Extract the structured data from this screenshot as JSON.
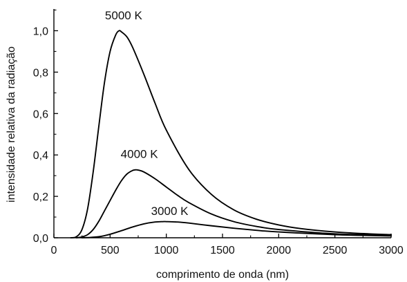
{
  "chart_data": {
    "type": "line",
    "xlabel": "comprimento de onda (nm)",
    "ylabel": "intensidade relativa da radiação",
    "xlim": [
      0,
      3000
    ],
    "ylim": [
      0,
      1.1
    ],
    "x_ticks": [
      0,
      500,
      1000,
      1500,
      2000,
      2500,
      3000
    ],
    "x_tick_labels": [
      "0",
      "500",
      "1000",
      "1500",
      "2000",
      "2500",
      "3000"
    ],
    "y_ticks": [
      0,
      0.2,
      0.4,
      0.6,
      0.8,
      1.0
    ],
    "y_tick_labels": [
      "0,0",
      "0,2",
      "0,4",
      "0,6",
      "0,8",
      "1,0"
    ],
    "grid": false,
    "line_color": "#000000",
    "series": [
      {
        "name": "5000 K",
        "x": [
          150,
          200,
          250,
          300,
          350,
          400,
          450,
          500,
          550,
          580,
          600,
          650,
          700,
          800,
          900,
          1000,
          1200,
          1400,
          1600,
          1800,
          2000,
          2200,
          2500,
          2800,
          3000
        ],
        "y": [
          0.0,
          0.005,
          0.04,
          0.14,
          0.32,
          0.54,
          0.75,
          0.9,
          0.98,
          1.0,
          0.995,
          0.97,
          0.92,
          0.79,
          0.65,
          0.52,
          0.33,
          0.21,
          0.135,
          0.09,
          0.062,
          0.044,
          0.028,
          0.019,
          0.015
        ]
      },
      {
        "name": "4000 K",
        "x": [
          200,
          250,
          300,
          350,
          400,
          450,
          500,
          550,
          600,
          650,
          700,
          725,
          750,
          800,
          900,
          1000,
          1100,
          1200,
          1400,
          1600,
          1800,
          2000,
          2500,
          3000
        ],
        "y": [
          0.0,
          0.004,
          0.015,
          0.04,
          0.08,
          0.13,
          0.18,
          0.23,
          0.275,
          0.308,
          0.325,
          0.328,
          0.327,
          0.318,
          0.285,
          0.245,
          0.205,
          0.17,
          0.115,
          0.078,
          0.055,
          0.04,
          0.019,
          0.011
        ]
      },
      {
        "name": "3000 K",
        "x": [
          250,
          300,
          400,
          500,
          600,
          700,
          800,
          900,
          970,
          1000,
          1100,
          1200,
          1400,
          1600,
          1800,
          2000,
          2500,
          3000
        ],
        "y": [
          0.0,
          0.001,
          0.005,
          0.017,
          0.034,
          0.052,
          0.067,
          0.076,
          0.078,
          0.078,
          0.076,
          0.071,
          0.058,
          0.046,
          0.036,
          0.028,
          0.015,
          0.009
        ]
      }
    ],
    "annotations": [
      {
        "text": "5000 K",
        "x": 620,
        "y": 1.055
      },
      {
        "text": "4000 K",
        "x": 760,
        "y": 0.385
      },
      {
        "text": "3000 K",
        "x": 1030,
        "y": 0.11
      }
    ]
  }
}
